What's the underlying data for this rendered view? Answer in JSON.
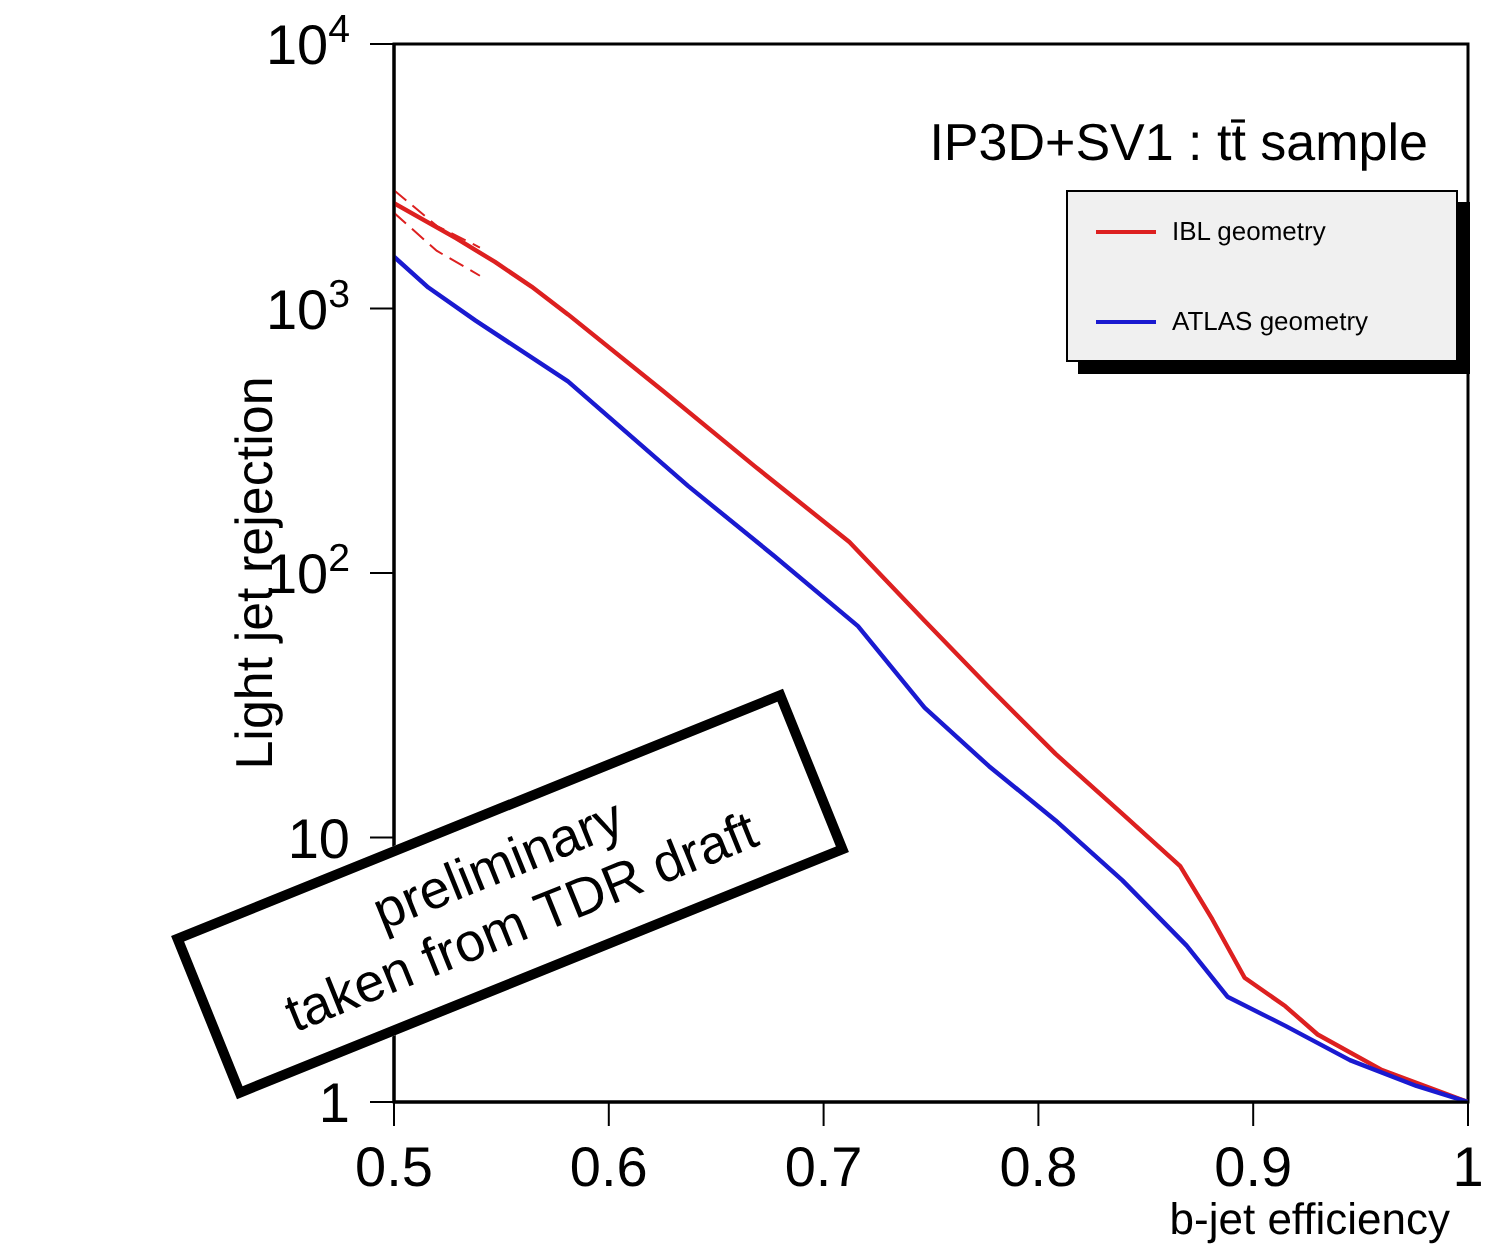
{
  "chart_data": {
    "type": "line",
    "title": "IP3D+SV1 : tt̄ sample",
    "xlabel": "b-jet efficiency",
    "ylabel": "Light jet rejection",
    "log": "y",
    "xlim": [
      0.5,
      1
    ],
    "xticks": [
      0.5,
      0.6,
      0.7,
      0.8,
      0.9,
      {
        "value": 1,
        "label": "1"
      }
    ],
    "ylim": [
      1,
      10000
    ],
    "yticks": [
      1,
      10,
      {
        "value": 100,
        "label": "10$^{2}$"
      },
      {
        "value": 1000,
        "label": "10$^{3}$"
      },
      {
        "value": 10000,
        "label": "10$^{4}$"
      }
    ],
    "legend": "top right",
    "marker": "none",
    "line_style": "solid",
    "series": [
      {
        "name": "IBL geometry",
        "color": "#dd2020",
        "x": [
          0.5,
          0.529,
          0.547,
          0.564,
          0.581,
          0.625,
          0.668,
          0.712,
          0.747,
          0.777,
          0.808,
          0.839,
          0.866,
          0.881,
          0.896,
          0.915,
          0.93,
          0.96,
          1.0
        ],
        "values": [
          2500,
          1840,
          1500,
          1210,
          950,
          490,
          253,
          131,
          66,
          37,
          20.7,
          12.3,
          7.8,
          4.9,
          2.95,
          2.3,
          1.8,
          1.32,
          1.0
        ]
      },
      {
        "name": "ATLAS geometry",
        "color": "#1a1ad0",
        "x": [
          0.5,
          0.516,
          0.538,
          0.581,
          0.637,
          0.677,
          0.716,
          0.747,
          0.777,
          0.808,
          0.839,
          0.869,
          0.888,
          0.915,
          0.945,
          0.976,
          1.0
        ],
        "values": [
          1570,
          1200,
          900,
          530,
          213,
          116,
          63,
          31,
          18.6,
          11.6,
          6.9,
          3.9,
          2.5,
          1.94,
          1.44,
          1.15,
          1.0
        ]
      },
      {
        "color": "#dd2020",
        "line_style": "dashed",
        "x": [
          0.5,
          0.52,
          0.54
        ],
        "values": [
          2800,
          2050,
          1700
        ]
      },
      {
        "color": "#dd2020",
        "line_style": "dashed",
        "x": [
          0.5,
          0.52,
          0.54
        ],
        "values": [
          2300,
          1650,
          1330
        ]
      }
    ],
    "annotations": [
      "preliminary\ntaken from TDR draft"
    ]
  }
}
